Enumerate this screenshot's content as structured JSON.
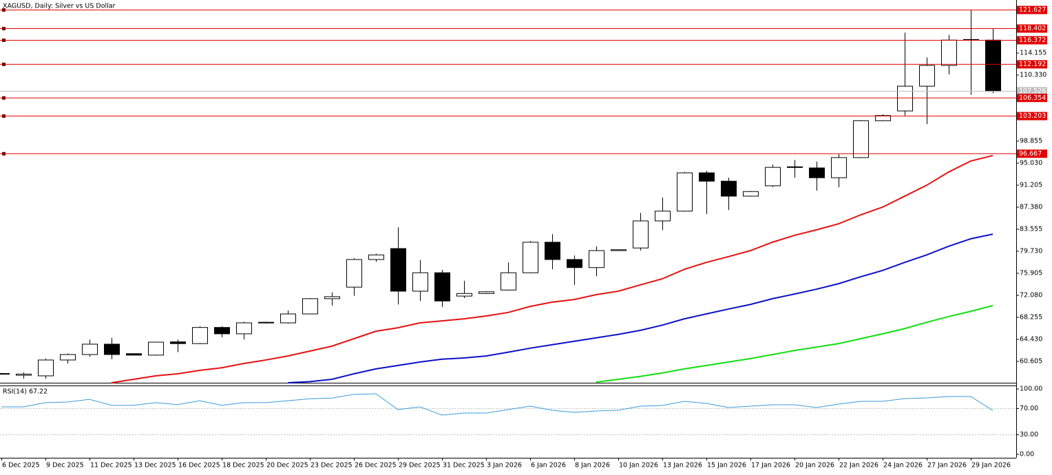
{
  "chart_data": [
    {
      "type": "candlestick",
      "title": "XAGUSD, Daily:  Silver vs US Dollar",
      "categories": [
        "6 Dec 2025",
        null,
        "9 Dec 2025",
        null,
        "11 Dec 2025",
        null,
        "13 Dec 2025",
        null,
        "16 Dec 2025",
        null,
        "18 Dec 2025",
        null,
        "20 Dec 2025",
        null,
        "23 Dec 2025",
        null,
        "26 Dec 2025",
        null,
        "29 Dec 2025",
        null,
        "31 Dec 2025",
        null,
        "3 Jan 2026",
        null,
        "6 Jan 2026",
        null,
        "8 Jan 2026",
        null,
        "10 Jan 2026",
        null,
        "13 Jan 2026",
        null,
        "15 Jan 2026",
        null,
        "17 Jan 2026",
        null,
        "20 Jan 2026",
        null,
        "22 Jan 2026",
        null,
        "24 Jan 2026",
        null,
        "27 Jan 2026",
        null,
        "29 Jan 2026",
        null
      ],
      "open": [
        58.5,
        58.2,
        58.1,
        60.85,
        61.8,
        63.6,
        61.95,
        61.7,
        64.0,
        63.7,
        66.5,
        65.4,
        67.3,
        67.3,
        68.85,
        71.5,
        73.5,
        78.3,
        80.2,
        72.8,
        76.0,
        71.95,
        72.4,
        73.0,
        76.0,
        81.3,
        78.3,
        76.9,
        79.85,
        80.3,
        85.0,
        86.7,
        93.35,
        91.9,
        89.3,
        91.1,
        94.3,
        94.2,
        92.5,
        96.0,
        102.4,
        104.1,
        108.4,
        112.0,
        116.4,
        116.4
      ],
      "high": [
        58.6,
        58.7,
        61.1,
        62.0,
        64.4,
        64.7,
        62.0,
        64.0,
        64.4,
        66.7,
        66.7,
        67.5,
        67.5,
        69.45,
        71.6,
        72.6,
        78.5,
        79.3,
        83.9,
        78.2,
        76.5,
        74.6,
        72.8,
        77.8,
        81.5,
        82.7,
        79.0,
        80.6,
        80.0,
        86.4,
        89.05,
        93.5,
        93.7,
        92.5,
        90.2,
        94.8,
        95.6,
        95.3,
        96.6,
        102.5,
        103.5,
        117.7,
        113.4,
        117.3,
        121.6,
        118.4
      ],
      "low": [
        58.4,
        57.6,
        57.6,
        60.25,
        61.4,
        61.0,
        61.6,
        61.6,
        62.2,
        63.6,
        64.8,
        64.4,
        67.2,
        67.2,
        68.8,
        70.3,
        72.0,
        77.9,
        70.5,
        71.1,
        70.05,
        71.6,
        72.3,
        72.9,
        75.9,
        76.6,
        73.9,
        75.4,
        79.8,
        79.85,
        83.4,
        86.6,
        86.2,
        86.9,
        89.2,
        90.85,
        92.5,
        90.25,
        90.85,
        95.9,
        102.3,
        103.3,
        101.8,
        110.45,
        106.9,
        107.2
      ],
      "close": [
        58.5,
        58.4,
        60.85,
        61.8,
        63.6,
        61.8,
        61.7,
        63.95,
        63.7,
        66.5,
        65.4,
        67.3,
        67.4,
        68.85,
        71.5,
        71.85,
        78.3,
        79.1,
        72.8,
        76.0,
        71.1,
        72.4,
        72.7,
        76.0,
        81.3,
        78.3,
        76.9,
        79.85,
        80.0,
        85.0,
        86.7,
        93.35,
        91.9,
        89.3,
        90.1,
        94.3,
        94.4,
        92.5,
        96.0,
        102.4,
        103.3,
        108.4,
        112.0,
        116.4,
        116.5,
        107.5
      ],
      "up_color": "#ffffff",
      "down_color": "#000000",
      "outline_color": "#000000",
      "series": [
        {
          "color": "#e81010",
          "values": [
            null,
            null,
            null,
            null,
            null,
            56.9,
            57.5,
            58.1,
            58.45,
            59.05,
            59.5,
            60.25,
            60.85,
            61.55,
            62.4,
            63.25,
            64.55,
            65.85,
            66.45,
            67.3,
            67.65,
            68.0,
            68.5,
            69.1,
            70.15,
            70.9,
            71.35,
            72.2,
            72.8,
            73.9,
            74.95,
            76.6,
            77.8,
            78.8,
            79.85,
            81.3,
            82.5,
            83.45,
            84.5,
            86.05,
            87.4,
            89.3,
            91.2,
            93.5,
            95.4,
            96.35
          ]
        },
        {
          "color": "#0a10c8",
          "values": [
            null,
            null,
            null,
            null,
            null,
            null,
            null,
            null,
            null,
            null,
            null,
            null,
            null,
            56.9,
            57.1,
            57.5,
            58.45,
            59.3,
            59.9,
            60.5,
            61.0,
            61.2,
            61.55,
            62.2,
            62.9,
            63.5,
            64.1,
            64.7,
            65.3,
            66.0,
            66.9,
            68.0,
            68.85,
            69.7,
            70.5,
            71.5,
            72.3,
            73.15,
            74.1,
            75.3,
            76.4,
            77.8,
            79.1,
            80.6,
            81.9,
            82.7
          ]
        },
        {
          "color": "#10e010",
          "values": [
            null,
            null,
            null,
            null,
            null,
            null,
            null,
            null,
            null,
            null,
            null,
            null,
            null,
            null,
            null,
            null,
            null,
            null,
            null,
            null,
            null,
            null,
            null,
            null,
            null,
            null,
            null,
            57.0,
            57.5,
            58.0,
            58.6,
            59.3,
            59.9,
            60.5,
            61.1,
            61.8,
            62.5,
            63.1,
            63.7,
            64.55,
            65.4,
            66.3,
            67.4,
            68.4,
            69.3,
            70.3
          ]
        }
      ],
      "levels": [
        121.627,
        118.402,
        116.372,
        112.192,
        106.354,
        103.203,
        96.667
      ],
      "levels_color": "#e00000",
      "last_price": 107.526,
      "last_price_color": "#c0c0c0",
      "ylim": [
        56.9,
        123.36
      ],
      "yticks": [
        60.605,
        {
          "value": 64.43,
          "label": "64.430"
        },
        68.255,
        {
          "value": 72.08,
          "label": "72.080"
        },
        75.905,
        {
          "value": 79.73,
          "label": "79.730"
        },
        83.555,
        {
          "value": 87.38,
          "label": "87.380"
        },
        91.205,
        {
          "value": 95.03,
          "label": "95.030"
        },
        98.855,
        {
          "value": 110.33,
          "label": "110.330"
        },
        114.155
      ]
    },
    {
      "type": "line",
      "title": "RSI(14) 67.22",
      "series": [
        {
          "color": "#3a9ad9",
          "values": [
            72.6,
            72.6,
            79,
            80,
            84,
            75,
            75,
            79,
            76,
            82,
            75,
            79,
            79,
            82,
            85,
            86,
            91.6,
            92.6,
            68.4,
            72.6,
            60,
            63.2,
            63.2,
            68.4,
            73.7,
            67.4,
            64.2,
            66.3,
            67.4,
            73.7,
            74.7,
            81,
            77.9,
            71.6,
            73.7,
            75.8,
            75.8,
            71.6,
            76.8,
            81,
            81,
            85.3,
            86.3,
            88.4,
            88.4,
            67.2
          ]
        }
      ],
      "levels": [
        70,
        30
      ],
      "ylim": [
        -5.3,
        104.2
      ],
      "yticks": [
        {
          "value": 100,
          "label": "100.00"
        },
        {
          "value": 70,
          "label": "70.00"
        },
        {
          "value": 30,
          "label": "30.00"
        },
        {
          "value": 0,
          "label": "0.00"
        }
      ]
    }
  ]
}
